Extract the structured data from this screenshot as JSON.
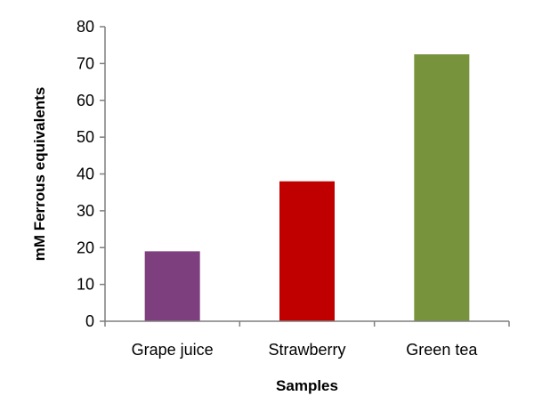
{
  "chart_data": {
    "type": "bar",
    "categories": [
      "Grape juice",
      "Strawberry",
      "Green tea"
    ],
    "values": [
      19,
      38,
      72.5
    ],
    "colors": [
      "#7e3f7e",
      "#c00000",
      "#77933c"
    ],
    "xlabel": "Samples",
    "ylabel": "mM Ferrous equivalents",
    "ylim": [
      0,
      80
    ],
    "yticks": [
      0,
      10,
      20,
      30,
      40,
      50,
      60,
      70,
      80
    ],
    "grid": false,
    "legend": "none"
  }
}
